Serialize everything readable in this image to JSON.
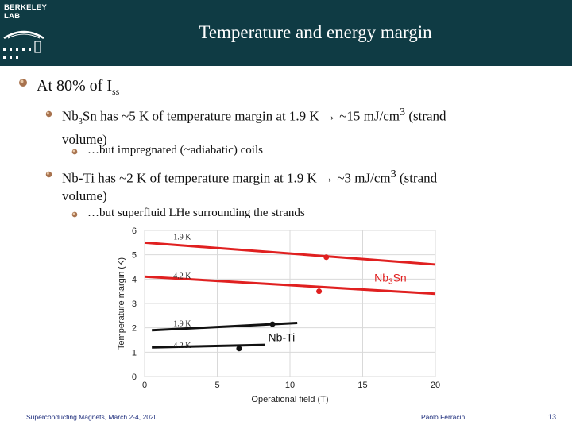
{
  "header": {
    "logo_line1": "BERKELEY",
    "logo_line2": "LAB",
    "title": "Temperature and energy margin"
  },
  "content": {
    "level1": {
      "text": "At 80% of I",
      "sub": "ss"
    },
    "nb3sn": {
      "a": "Nb",
      "a_sub": "3",
      "b": "Sn has ~5 K of temperature margin at 1.9 K ",
      "arrow": "→",
      "c": " ~15 mJ/cm",
      "c_sup": "3",
      "d": " (strand",
      "line2": "volume)"
    },
    "nb3sn_sub": "…but impregnated (~adiabatic) coils",
    "nbti": {
      "a": "Nb-Ti has ~2 K of temperature margin at 1.9 K ",
      "arrow": "→",
      "c": " ~3 mJ/cm",
      "c_sup": "3",
      "d": " (strand",
      "line2": "volume)"
    },
    "nbti_sub": "…but superfluid LHe surrounding the strands"
  },
  "chart_data": {
    "type": "line",
    "xlabel": "Operational field (T)",
    "ylabel": "Temperature margin (K)",
    "xlim": [
      0,
      20
    ],
    "ylim": [
      0,
      6
    ],
    "x_ticks": [
      "0",
      "5",
      "10",
      "15",
      "20"
    ],
    "y_ticks": [
      "0",
      "1",
      "2",
      "3",
      "4",
      "5",
      "6"
    ],
    "grid": true,
    "series": [
      {
        "name": "Nb3Sn 1.9 K",
        "color": "#e02020",
        "x": [
          0,
          20
        ],
        "y": [
          5.5,
          4.6
        ],
        "marker": {
          "x": 12.5,
          "y": 4.9
        },
        "label": "1.9 K",
        "label_x": 1,
        "label_y": 5.75
      },
      {
        "name": "Nb3Sn 4.2 K",
        "color": "#e02020",
        "x": [
          0,
          20
        ],
        "y": [
          4.1,
          3.4
        ],
        "marker": {
          "x": 12,
          "y": 3.5
        },
        "label": "4.2 K",
        "label_x": 1,
        "label_y": 4.15
      },
      {
        "name": "Nb-Ti 1.9 K",
        "color": "#111111",
        "x": [
          0.5,
          10.5
        ],
        "y": [
          1.9,
          2.2
        ],
        "marker": {
          "x": 8.8,
          "y": 2.15
        },
        "label": "1.9 K",
        "label_x": 1,
        "label_y": 2.2
      },
      {
        "name": "Nb-Ti 4.2 K",
        "color": "#111111",
        "x": [
          0.5,
          8.3
        ],
        "y": [
          1.2,
          1.3
        ],
        "marker": {
          "x": 6.5,
          "y": 1.15
        },
        "label": "4.2 K",
        "label_x": 1,
        "label_y": 1.3
      }
    ],
    "annotations": [
      {
        "text": "Nb",
        "sub": "3",
        "rest": "Sn",
        "color": "#e02020",
        "x": 15.8,
        "y": 3.9
      },
      {
        "text": "Nb-Ti",
        "sub": "",
        "rest": "",
        "color": "#111111",
        "x": 8.5,
        "y": 1.45
      }
    ]
  },
  "footer": {
    "left": "Superconducting Magnets, March 2-4, 2020",
    "author": "Paolo Ferracin",
    "page": "13"
  }
}
